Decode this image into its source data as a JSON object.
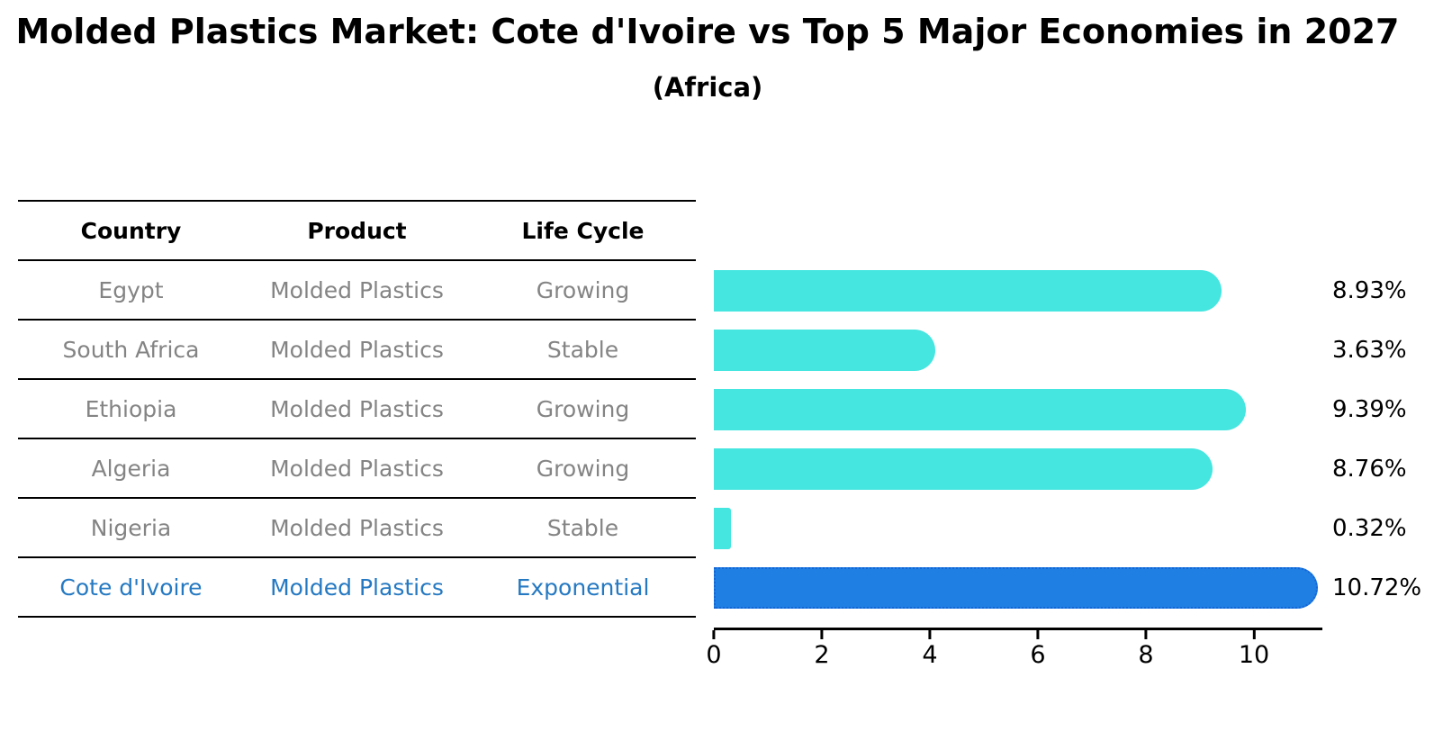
{
  "title": "Molded Plastics Market: Cote d'Ivoire vs Top 5 Major Economies in 2027",
  "subtitle": "(Africa)",
  "table": {
    "headers": {
      "country": "Country",
      "product": "Product",
      "life_cycle": "Life Cycle"
    },
    "rows": [
      {
        "country": "Egypt",
        "product": "Molded Plastics",
        "life_cycle": "Growing"
      },
      {
        "country": "South Africa",
        "product": "Molded Plastics",
        "life_cycle": "Stable"
      },
      {
        "country": "Ethiopia",
        "product": "Molded Plastics",
        "life_cycle": "Growing"
      },
      {
        "country": "Algeria",
        "product": "Molded Plastics",
        "life_cycle": "Growing"
      },
      {
        "country": "Nigeria",
        "product": "Molded Plastics",
        "life_cycle": "Stable"
      },
      {
        "country": "Cote d'Ivoire",
        "product": "Molded Plastics",
        "life_cycle": "Exponential"
      }
    ]
  },
  "chart_data": {
    "type": "bar",
    "orientation": "horizontal",
    "title": "Molded Plastics Market: Cote d'Ivoire vs Top 5 Major Economies in 2027",
    "subtitle": "(Africa)",
    "categories": [
      "Egypt",
      "South Africa",
      "Ethiopia",
      "Algeria",
      "Nigeria",
      "Cote d'Ivoire"
    ],
    "values": [
      8.93,
      3.63,
      9.39,
      8.76,
      0.32,
      10.72
    ],
    "value_labels": [
      "8.93%",
      "3.63%",
      "9.39%",
      "8.76%",
      "0.32%",
      "10.72%"
    ],
    "xlim": [
      0,
      11.3
    ],
    "xticks": [
      "0",
      "2",
      "4",
      "6",
      "8",
      "10"
    ],
    "grid": false,
    "legend": false,
    "highlight_index": 5,
    "bar_color": "#45E5E0",
    "highlight_fill": "#1F7FE3",
    "highlight_border": "#1465D6"
  },
  "colors": {
    "background": "#FFFFFF",
    "axis": "#000000",
    "row_text": "#848484",
    "highlight_text": "#2579C2",
    "value_text": "#000000"
  }
}
